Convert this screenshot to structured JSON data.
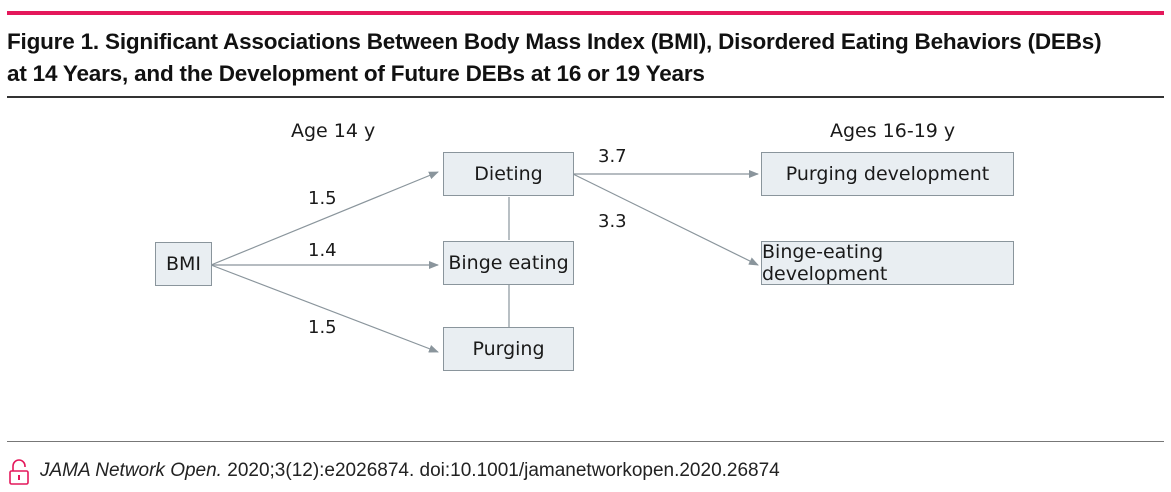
{
  "figure": {
    "title_line1": "Figure 1. Significant Associations Between Body Mass Index (BMI), Disordered Eating Behaviors (DEBs)",
    "title_line2": "at 14 Years, and the Development of Future DEBs at 16 or 19 Years"
  },
  "diagram": {
    "headers": {
      "left": "Age 14 y",
      "right": "Ages 16-19 y"
    },
    "nodes": {
      "bmi": "BMI",
      "dieting": "Dieting",
      "binge": "Binge eating",
      "purging": "Purging",
      "purging_dev": "Purging development",
      "binge_dev": "Binge-eating development"
    },
    "edges": [
      {
        "from": "BMI",
        "to": "Dieting",
        "label": "1.5"
      },
      {
        "from": "BMI",
        "to": "Binge eating",
        "label": "1.4"
      },
      {
        "from": "BMI",
        "to": "Purging",
        "label": "1.5"
      },
      {
        "from": "Dieting",
        "to": "Purging development",
        "label": "3.7"
      },
      {
        "from": "Dieting",
        "to": "Binge-eating development",
        "label": "3.3"
      }
    ],
    "colors": {
      "arrow": "#8a959c",
      "node_fill": "#e9eef2",
      "accent": "#e4185b"
    }
  },
  "citation": {
    "journal": "JAMA Network Open.",
    "rest": " 2020;3(12):e2026874. doi:10.1001/jamanetworkopen.2020.26874",
    "icon": "open-lock-icon"
  }
}
